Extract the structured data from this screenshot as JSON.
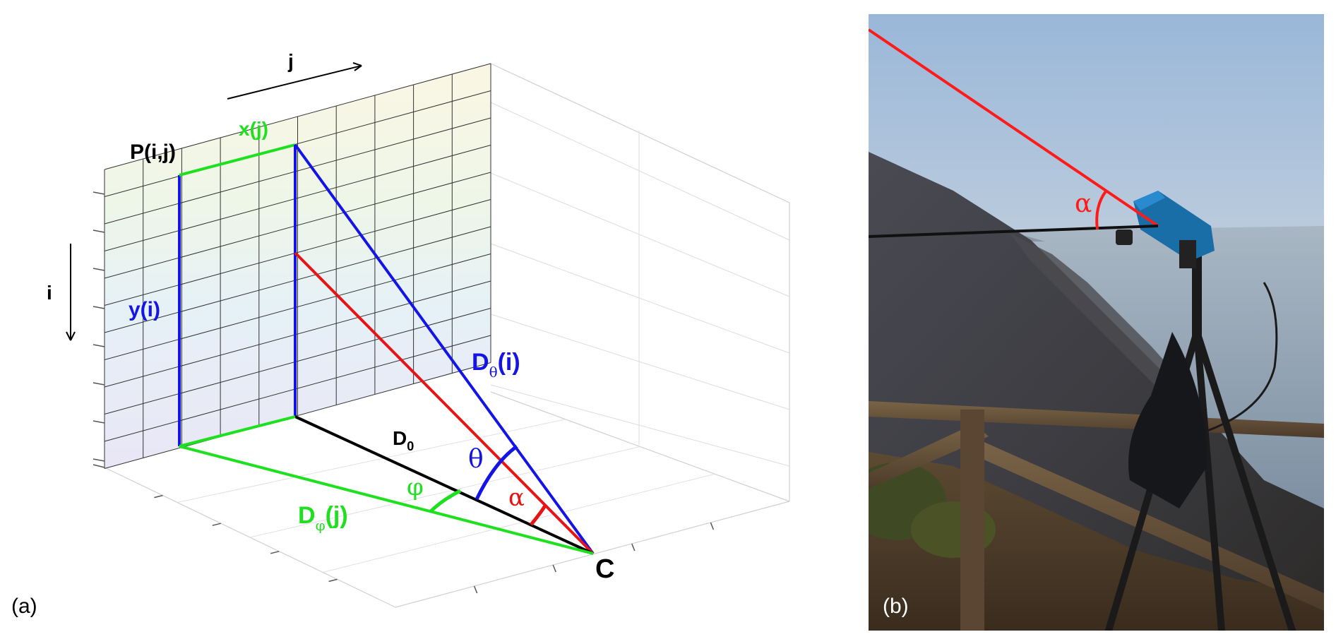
{
  "panel_a": {
    "panel_label": "(a)",
    "labels": {
      "j": "j",
      "i": "i",
      "point": "P(i,j)",
      "x": "x(j)",
      "y": "y(i)",
      "d_theta_main": "D",
      "d_theta_sub": "θ",
      "d_theta_tail": "(i)",
      "d0_main": "D",
      "d0_sub": "0",
      "theta": "θ",
      "phi": "φ",
      "alpha": "α",
      "d_phi_main": "D",
      "d_phi_sub": "φ",
      "d_phi_tail": "(j)",
      "camera": "C"
    },
    "colors": {
      "blue": "#1414e6",
      "green": "#1fe01f",
      "red": "#e61414",
      "black": "#000000"
    }
  },
  "panel_b": {
    "panel_label": "(b)",
    "alpha": "α",
    "colors": {
      "red": "#ff1a1a",
      "black": "#111111",
      "camera": "#1a6ea8"
    }
  }
}
